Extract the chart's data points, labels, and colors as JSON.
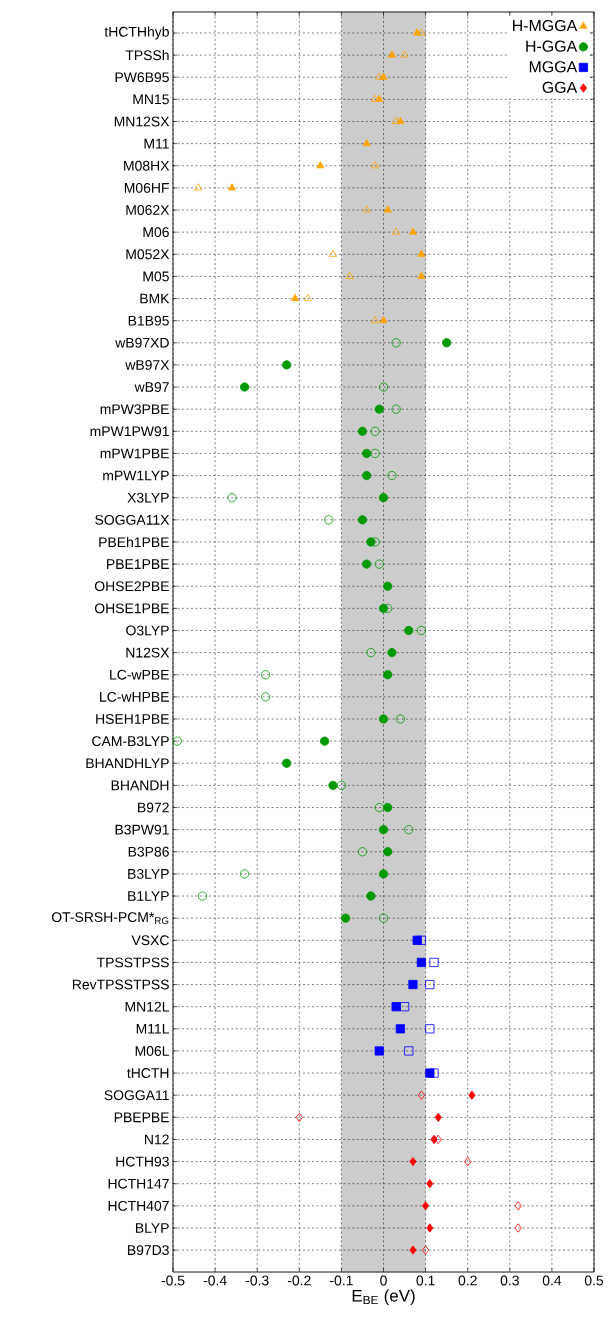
{
  "chart_data": {
    "type": "scatter",
    "orientation": "horizontal",
    "xlabel": "E$_{BE}$ (eV)",
    "categories": [
      "tHCTHhyb",
      "TPSSh",
      "PW6B95",
      "MN15",
      "MN12SX",
      "M11",
      "M08HX",
      "M06HF",
      "M062X",
      "M06",
      "M052X",
      "M05",
      "BMK",
      "B1B95",
      "wB97XD",
      "wB97X",
      "wB97",
      "mPW3PBE",
      "mPW1PW91",
      "mPW1PBE",
      "mPW1LYP",
      "X3LYP",
      "SOGGA11X",
      "PBEh1PBE",
      "PBE1PBE",
      "OHSE2PBE",
      "OHSE1PBE",
      "O3LYP",
      "N12SX",
      "LC-wPBE",
      "LC-wHPBE",
      "HSEH1PBE",
      "CAM-B3LYP",
      "BHANDHLYP",
      "BHANDH",
      "B972",
      "B3PW91",
      "B3P86",
      "B3LYP",
      "B1LYP",
      "OT-SRSH-PCM*$_{RG}$",
      "VSXC",
      "TPSSTPSS",
      "RevTPSSTPSS",
      "MN12L",
      "M11L",
      "M06L",
      "tHCTH",
      "SOGGA11",
      "PBEPBE",
      "N12",
      "HCTH93",
      "HCTH147",
      "HCTH407",
      "BLYP",
      "B97D3"
    ],
    "series": [
      {
        "name": "H-MGGA",
        "color": "#ffa500",
        "marker": "triangle",
        "values": [
          0.08,
          0.02,
          0.0,
          -0.01,
          0.04,
          -0.04,
          -0.15,
          -0.36,
          0.01,
          0.07,
          0.09,
          0.09,
          -0.21,
          0.0,
          null,
          null,
          null,
          null,
          null,
          null,
          null,
          null,
          null,
          null,
          null,
          null,
          null,
          null,
          null,
          null,
          null,
          null,
          null,
          null,
          null,
          null,
          null,
          null,
          null,
          null,
          null,
          null,
          null,
          null,
          null,
          null,
          null,
          null,
          null,
          null,
          null,
          null,
          null,
          null,
          null,
          null
        ]
      },
      {
        "name": "H-GGA",
        "color": "#009900",
        "marker": "circle",
        "values": [
          null,
          null,
          null,
          null,
          null,
          null,
          null,
          null,
          null,
          null,
          null,
          null,
          null,
          null,
          0.15,
          -0.23,
          -0.33,
          -0.01,
          -0.05,
          -0.04,
          -0.04,
          0.0,
          -0.05,
          -0.03,
          -0.04,
          0.01,
          0.0,
          0.06,
          0.02,
          0.01,
          null,
          0.0,
          -0.14,
          -0.23,
          -0.12,
          0.01,
          0.0,
          0.01,
          0.0,
          -0.03,
          -0.09,
          null,
          null,
          null,
          null,
          null,
          null,
          null,
          null,
          null,
          null,
          null,
          null,
          null,
          null,
          null
        ]
      },
      {
        "name": "MGGA",
        "color": "#0000ff",
        "marker": "square",
        "values": [
          null,
          null,
          null,
          null,
          null,
          null,
          null,
          null,
          null,
          null,
          null,
          null,
          null,
          null,
          null,
          null,
          null,
          null,
          null,
          null,
          null,
          null,
          null,
          null,
          null,
          null,
          null,
          null,
          null,
          null,
          null,
          null,
          null,
          null,
          null,
          null,
          null,
          null,
          null,
          null,
          null,
          0.08,
          0.09,
          0.07,
          0.03,
          0.04,
          -0.01,
          0.11,
          null,
          null,
          null,
          null,
          null,
          null,
          null,
          null
        ]
      },
      {
        "name": "GGA",
        "color": "#ff0000",
        "marker": "diamond",
        "values": [
          null,
          null,
          null,
          null,
          null,
          null,
          null,
          null,
          null,
          null,
          null,
          null,
          null,
          null,
          null,
          null,
          null,
          null,
          null,
          null,
          null,
          null,
          null,
          null,
          null,
          null,
          null,
          null,
          null,
          null,
          null,
          null,
          null,
          null,
          null,
          null,
          null,
          null,
          null,
          null,
          null,
          null,
          null,
          null,
          null,
          null,
          null,
          null,
          0.21,
          0.13,
          0.12,
          0.07,
          0.11,
          0.1,
          0.11,
          0.07
        ]
      },
      {
        "color": "#ffa500",
        "marker": "triangle",
        "values": [
          0.09,
          0.05,
          -0.01,
          -0.02,
          0.03,
          null,
          -0.02,
          -0.44,
          -0.04,
          0.03,
          -0.12,
          -0.08,
          -0.18,
          -0.02,
          null,
          null,
          null,
          null,
          null,
          null,
          null,
          null,
          null,
          null,
          null,
          null,
          null,
          null,
          null,
          null,
          null,
          null,
          null,
          null,
          null,
          null,
          null,
          null,
          null,
          null,
          null,
          null,
          null,
          null,
          null,
          null,
          null,
          null,
          null,
          null,
          null,
          null,
          null,
          null,
          null,
          null
        ]
      },
      {
        "color": "#009900",
        "marker": "circle",
        "values": [
          null,
          null,
          null,
          null,
          null,
          null,
          null,
          null,
          null,
          null,
          null,
          null,
          null,
          null,
          0.03,
          null,
          0.0,
          0.03,
          -0.02,
          -0.02,
          0.02,
          -0.36,
          -0.13,
          -0.02,
          -0.01,
          null,
          0.01,
          0.09,
          -0.03,
          -0.28,
          -0.28,
          0.04,
          -0.49,
          null,
          -0.1,
          -0.01,
          0.06,
          -0.05,
          -0.33,
          -0.43,
          0.0,
          null,
          null,
          null,
          null,
          null,
          null,
          null,
          null,
          null,
          null,
          null,
          null,
          null,
          null,
          null
        ]
      },
      {
        "color": "#0000ff",
        "marker": "square",
        "values": [
          null,
          null,
          null,
          null,
          null,
          null,
          null,
          null,
          null,
          null,
          null,
          null,
          null,
          null,
          null,
          null,
          null,
          null,
          null,
          null,
          null,
          null,
          null,
          null,
          null,
          null,
          null,
          null,
          null,
          null,
          null,
          null,
          null,
          null,
          null,
          null,
          null,
          null,
          null,
          null,
          null,
          0.09,
          0.12,
          0.11,
          0.05,
          0.11,
          0.06,
          0.12,
          null,
          null,
          null,
          null,
          null,
          null,
          null,
          null
        ]
      },
      {
        "color": "#ff0000",
        "marker": "diamond",
        "values": [
          null,
          null,
          null,
          null,
          null,
          null,
          null,
          null,
          null,
          null,
          null,
          null,
          null,
          null,
          null,
          null,
          null,
          null,
          null,
          null,
          null,
          null,
          null,
          null,
          null,
          null,
          null,
          null,
          null,
          null,
          null,
          null,
          null,
          null,
          null,
          null,
          null,
          null,
          null,
          null,
          null,
          null,
          null,
          null,
          null,
          null,
          null,
          null,
          0.09,
          -0.2,
          0.13,
          0.2,
          null,
          0.32,
          0.32,
          0.1
        ]
      }
    ],
    "xlim": [
      -0.5,
      0.5
    ],
    "xticks": [
      -0.5,
      -0.4,
      -0.3,
      -0.2,
      -0.1,
      0,
      0.1,
      0.2,
      0.3,
      0.4,
      0.5
    ],
    "bands": [
      {
        "axis": "x",
        "from": -0.1,
        "to": 0.1,
        "color": "#cccccc"
      }
    ],
    "grid": true,
    "legend": "top right"
  }
}
